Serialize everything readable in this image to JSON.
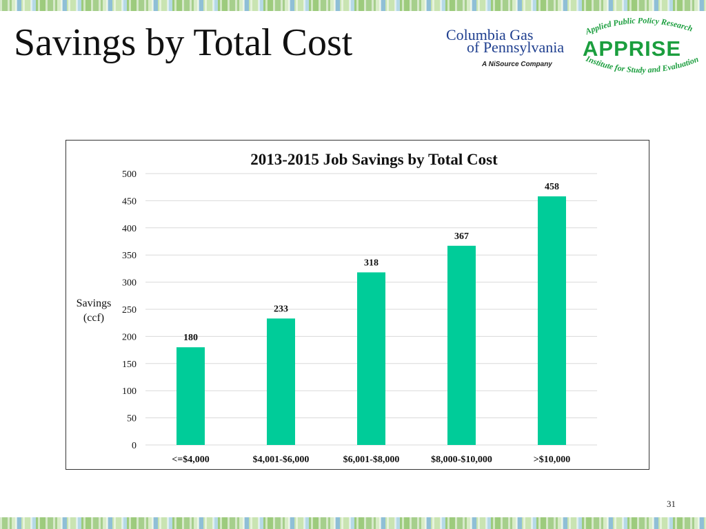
{
  "slide": {
    "title": "Savings by Total Cost",
    "page_number": "31"
  },
  "logos": {
    "columbia_line1": "Columbia Gas",
    "columbia_line2": "of Pennsylvania",
    "columbia_sub": "A NiSource Company",
    "apprise_arc_top": "Applied Public Policy Research",
    "apprise_main": "APPRISE",
    "apprise_arc_bottom": "Institute for Study and Evaluation"
  },
  "colors": {
    "bar": "#00cc99",
    "grid": "#d9d9d9",
    "columbia_blue": "#1f3f8f",
    "apprise_green": "#1b9e3e"
  },
  "chart_data": {
    "type": "bar",
    "title": "2013-2015 Job Savings by Total Cost",
    "ylabel_line1": "Savings",
    "ylabel_line2": "(ccf)",
    "xlabel": "",
    "categories": [
      "<=$4,000",
      "$4,001-$6,000",
      "$6,001-$8,000",
      "$8,000-$10,000",
      ">$10,000"
    ],
    "values": [
      180,
      233,
      318,
      367,
      458
    ],
    "data_labels": [
      "180",
      "233",
      "318",
      "367",
      "458"
    ],
    "ylim": [
      0,
      500
    ],
    "yticks": [
      "0",
      "50",
      "100",
      "150",
      "200",
      "250",
      "300",
      "350",
      "400",
      "450",
      "500"
    ],
    "ytick_values": [
      0,
      50,
      100,
      150,
      200,
      250,
      300,
      350,
      400,
      450,
      500
    ],
    "grid": true,
    "legend": "none"
  }
}
